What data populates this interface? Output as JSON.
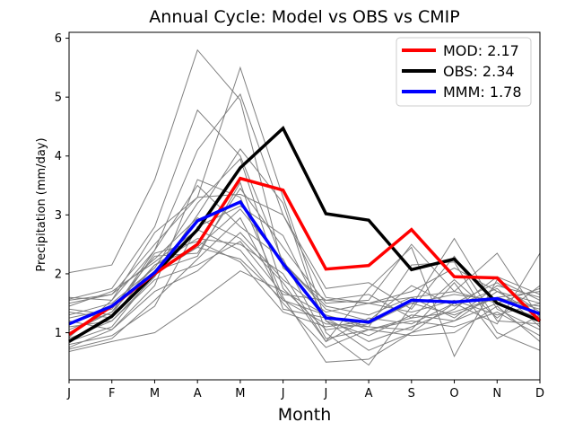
{
  "chart_data": {
    "type": "line",
    "title": "Annual Cycle: Model vs OBS vs CMIP",
    "xlabel": "Month",
    "ylabel": "Precipitation (mm/day)",
    "categories": [
      "J",
      "F",
      "M",
      "A",
      "M",
      "J",
      "J",
      "A",
      "S",
      "O",
      "N",
      "D"
    ],
    "ylim": [
      0.2,
      6.1
    ],
    "yticks": [
      1,
      2,
      3,
      4,
      5,
      6
    ],
    "legend_position": "top-right",
    "colors": {
      "mod": "#ff0000",
      "obs": "#000000",
      "mmm": "#0000ff",
      "cmip": "#808080"
    },
    "series": [
      {
        "key": "mod",
        "name": "MOD: 2.17",
        "values": [
          0.97,
          1.45,
          2.0,
          2.5,
          3.62,
          3.42,
          2.08,
          2.14,
          2.75,
          1.95,
          1.93,
          1.2
        ]
      },
      {
        "key": "obs",
        "name": "OBS: 2.34",
        "values": [
          0.85,
          1.28,
          2.0,
          2.75,
          3.8,
          4.47,
          3.02,
          2.91,
          2.07,
          2.25,
          1.5,
          1.2
        ]
      },
      {
        "key": "mmm",
        "name": "MMM: 1.78",
        "values": [
          1.15,
          1.45,
          2.02,
          2.9,
          3.22,
          2.17,
          1.25,
          1.18,
          1.55,
          1.52,
          1.58,
          1.32
        ]
      }
    ],
    "cmip_models": [
      [
        2.02,
        2.15,
        3.6,
        5.8,
        4.95,
        2.1,
        1.55,
        1.5,
        1.6,
        1.7,
        1.5,
        1.25
      ],
      [
        1.57,
        1.75,
        2.8,
        4.78,
        4.0,
        2.2,
        1.4,
        1.2,
        1.5,
        1.3,
        1.6,
        1.4
      ],
      [
        0.92,
        1.55,
        2.7,
        3.3,
        5.5,
        3.3,
        1.2,
        0.95,
        1.3,
        1.2,
        1.7,
        1.5
      ],
      [
        1.0,
        1.35,
        2.4,
        4.1,
        5.05,
        3.0,
        1.6,
        1.5,
        1.7,
        2.1,
        1.7,
        1.3
      ],
      [
        0.75,
        1.05,
        1.8,
        3.6,
        3.3,
        1.6,
        0.5,
        0.55,
        1.0,
        1.5,
        1.85,
        1.35
      ],
      [
        1.1,
        1.2,
        1.95,
        3.0,
        4.12,
        3.2,
        1.0,
        0.45,
        1.45,
        2.6,
        1.4,
        1.05
      ],
      [
        0.68,
        0.85,
        1.0,
        1.5,
        2.05,
        1.7,
        1.3,
        1.05,
        1.25,
        1.35,
        1.6,
        1.7
      ],
      [
        1.25,
        1.4,
        2.3,
        2.35,
        3.45,
        2.45,
        1.5,
        1.55,
        2.5,
        1.7,
        2.35,
        1.25
      ],
      [
        1.5,
        1.65,
        2.25,
        2.95,
        2.6,
        1.85,
        0.85,
        1.75,
        2.45,
        0.6,
        1.9,
        1.55
      ],
      [
        0.85,
        1.1,
        2.0,
        2.45,
        3.1,
        2.2,
        1.45,
        1.3,
        1.6,
        1.25,
        1.8,
        1.6
      ],
      [
        1.3,
        1.5,
        2.1,
        3.2,
        3.95,
        1.75,
        1.05,
        1.15,
        1.5,
        1.65,
        1.55,
        1.45
      ],
      [
        0.72,
        0.9,
        1.55,
        2.25,
        2.95,
        1.55,
        1.3,
        1.1,
        2.15,
        2.2,
        1.0,
        0.7
      ],
      [
        1.35,
        1.25,
        2.15,
        2.6,
        2.5,
        2.0,
        0.85,
        1.25,
        1.15,
        1.5,
        1.15,
        2.35
      ],
      [
        1.55,
        1.65,
        2.5,
        3.3,
        3.35,
        3.0,
        1.75,
        1.85,
        1.4,
        2.3,
        1.2,
        1.15
      ],
      [
        1.45,
        1.7,
        2.2,
        2.75,
        2.4,
        1.5,
        0.75,
        1.05,
        0.95,
        1.0,
        1.45,
        0.85
      ],
      [
        0.95,
        1.45,
        2.05,
        2.3,
        3.55,
        1.4,
        1.25,
        0.85,
        1.1,
        1.4,
        1.95,
        1.65
      ],
      [
        1.2,
        1.05,
        1.7,
        2.05,
        2.7,
        1.9,
        1.35,
        1.5,
        1.35,
        1.55,
        1.3,
        1.5
      ],
      [
        1.4,
        1.3,
        2.35,
        2.55,
        2.2,
        1.35,
        1.1,
        1.2,
        1.8,
        1.45,
        1.75,
        1.1
      ],
      [
        0.9,
        1.2,
        1.9,
        2.15,
        2.55,
        1.65,
        1.55,
        1.65,
        1.25,
        1.9,
        1.25,
        1.8
      ],
      [
        1.05,
        1.35,
        2.15,
        2.45,
        2.25,
        1.55,
        1.15,
        1.1,
        1.05,
        1.85,
        0.9,
        1.3
      ],
      [
        1.6,
        1.55,
        2.4,
        3.5,
        2.8,
        2.25,
        0.9,
        1.05,
        1.2,
        1.1,
        1.35,
        0.95
      ],
      [
        0.8,
        0.95,
        1.45,
        2.8,
        3.15,
        2.65,
        1.2,
        0.7,
        1.0,
        1.2,
        1.5,
        1.75
      ]
    ]
  }
}
